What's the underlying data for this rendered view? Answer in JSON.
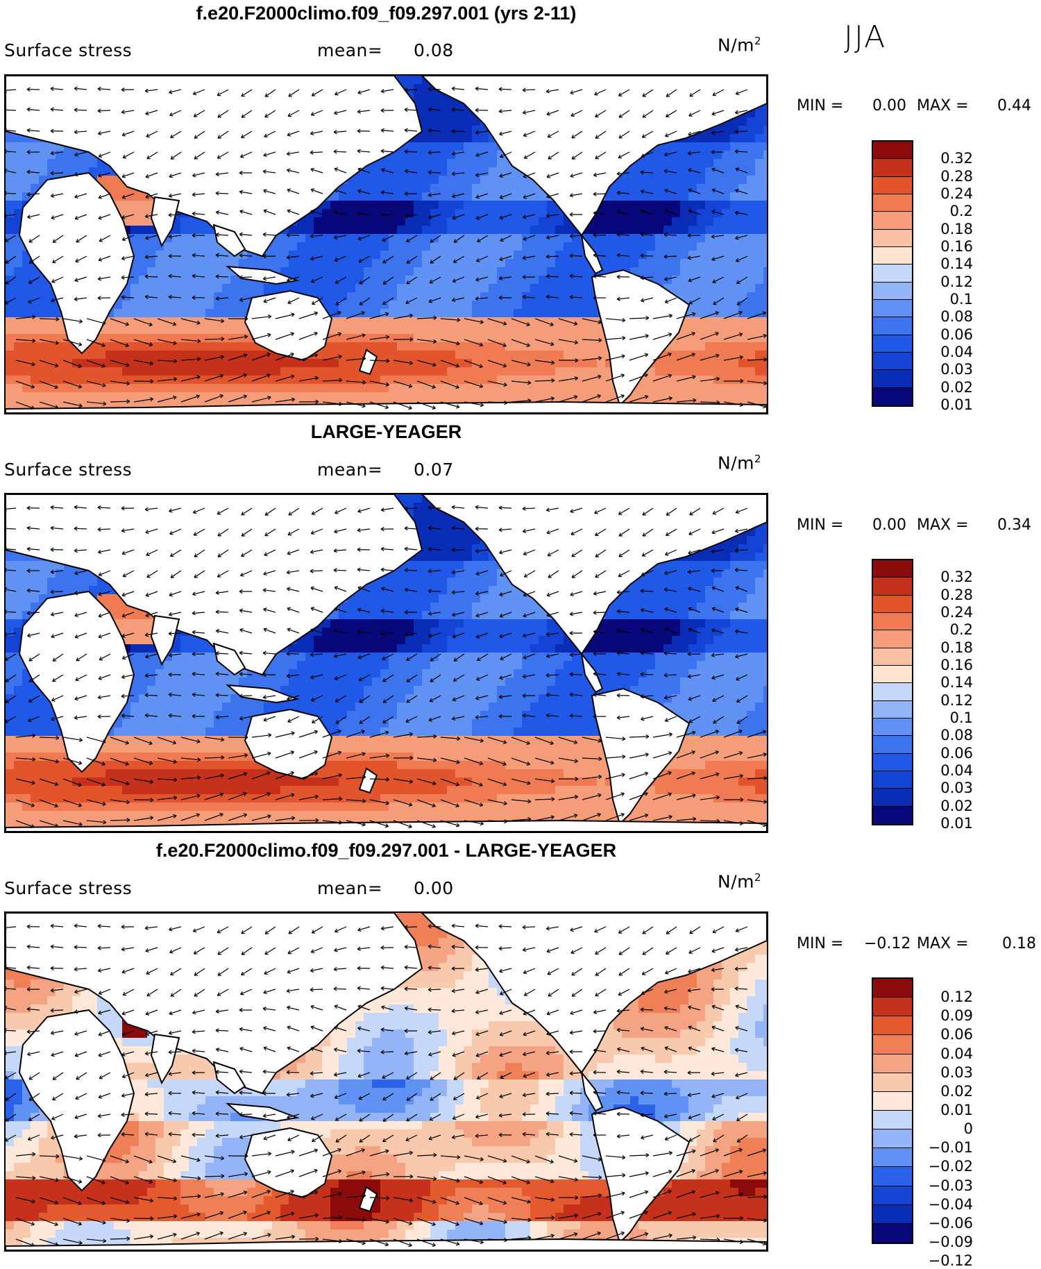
{
  "season": "JJA",
  "colors": {
    "stress_levels": [
      "#08087a",
      "#0a2db8",
      "#1344d6",
      "#2059e8",
      "#3b74ee",
      "#5f92f2",
      "#93b4f6",
      "#c6d8f9",
      "#fde4d0",
      "#f9c1a1",
      "#f59d78",
      "#f07a52",
      "#e2542b",
      "#c5311a",
      "#8b0a0a"
    ],
    "diff_levels": [
      "#08087a",
      "#0a2db8",
      "#1344d6",
      "#2a63ea",
      "#5f92f2",
      "#93b4f6",
      "#c6d8f9",
      "#fde8d9",
      "#f9c9ae",
      "#f4a482",
      "#ef7f56",
      "#e45a2f",
      "#c5311a",
      "#8b0a0a"
    ]
  },
  "panels": [
    {
      "title": "f.e20.F2000climo.f09_f09.297.001 (yrs 2-11)",
      "variable": "Surface stress",
      "mean_label": "mean=",
      "mean": "0.08",
      "units": "N/m",
      "units_sup": "2",
      "min_label": "MIN =",
      "min": "0.00",
      "max_label": "MAX =",
      "max": "0.44",
      "colorbar_ticks": [
        "0.32",
        "0.28",
        "0.24",
        "0.2",
        "0.18",
        "0.16",
        "0.14",
        "0.12",
        "0.1",
        "0.08",
        "0.06",
        "0.04",
        "0.03",
        "0.02",
        "0.01"
      ]
    },
    {
      "title": "LARGE-YEAGER",
      "variable": "Surface stress",
      "mean_label": "mean=",
      "mean": "0.07",
      "units": "N/m",
      "units_sup": "2",
      "min_label": "MIN =",
      "min": "0.00",
      "max_label": "MAX =",
      "max": "0.34",
      "colorbar_ticks": [
        "0.32",
        "0.28",
        "0.24",
        "0.2",
        "0.18",
        "0.16",
        "0.14",
        "0.12",
        "0.1",
        "0.08",
        "0.06",
        "0.04",
        "0.03",
        "0.02",
        "0.01"
      ]
    },
    {
      "title": "f.e20.F2000climo.f09_f09.297.001 - LARGE-YEAGER",
      "variable": "Surface stress",
      "mean_label": "mean=",
      "mean": "0.00",
      "units": "N/m",
      "units_sup": "2",
      "min_label": "MIN =",
      "min": "−0.12",
      "max_label": "MAX =",
      "max": "0.18",
      "colorbar_ticks": [
        "0.12",
        "0.09",
        "0.06",
        "0.04",
        "0.03",
        "0.02",
        "0.01",
        "0",
        "−0.01",
        "−0.02",
        "−0.03",
        "−0.04",
        "−0.06",
        "−0.09",
        "−0.12"
      ]
    }
  ]
}
